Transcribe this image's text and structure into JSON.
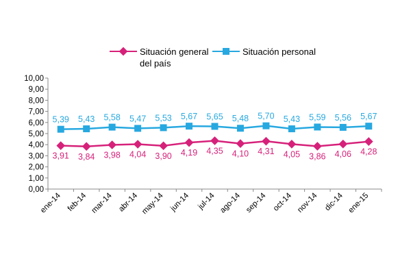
{
  "chart_data": {
    "type": "line",
    "categories": [
      "ene-14",
      "feb-14",
      "mar-14",
      "abr-14",
      "may-14",
      "jun-14",
      "jul-14",
      "ago-14",
      "sep-14",
      "oct-14",
      "nov-14",
      "dic-14",
      "ene-15"
    ],
    "ylim": [
      0,
      10
    ],
    "yticks": [
      "0,00",
      "1,00",
      "2,00",
      "3,00",
      "4,00",
      "5,00",
      "6,00",
      "7,00",
      "8,00",
      "9,00",
      "10,00"
    ],
    "grid": false,
    "legend_position": "top",
    "series": [
      {
        "name": "Situación general del país",
        "legend_lines": [
          "Situación general",
          "del país"
        ],
        "color": "#d6217a",
        "marker": "diamond",
        "values": [
          3.91,
          3.84,
          3.98,
          4.04,
          3.9,
          4.19,
          4.35,
          4.1,
          4.31,
          4.05,
          3.86,
          4.06,
          4.28
        ],
        "labels": [
          "3,91",
          "3,84",
          "3,98",
          "4,04",
          "3,90",
          "4,19",
          "4,35",
          "4,10",
          "4,31",
          "4,05",
          "3,86",
          "4,06",
          "4,28"
        ],
        "label_position": "below"
      },
      {
        "name": "Situación personal",
        "legend_lines": [
          "Situación personal"
        ],
        "color": "#27a8e0",
        "marker": "square",
        "values": [
          5.39,
          5.43,
          5.58,
          5.47,
          5.53,
          5.67,
          5.65,
          5.48,
          5.7,
          5.43,
          5.59,
          5.56,
          5.67
        ],
        "labels": [
          "5,39",
          "5,43",
          "5,58",
          "5,47",
          "5,53",
          "5,67",
          "5,65",
          "5,48",
          "5,70",
          "5,43",
          "5,59",
          "5,56",
          "5,67"
        ],
        "label_position": "above"
      }
    ]
  }
}
